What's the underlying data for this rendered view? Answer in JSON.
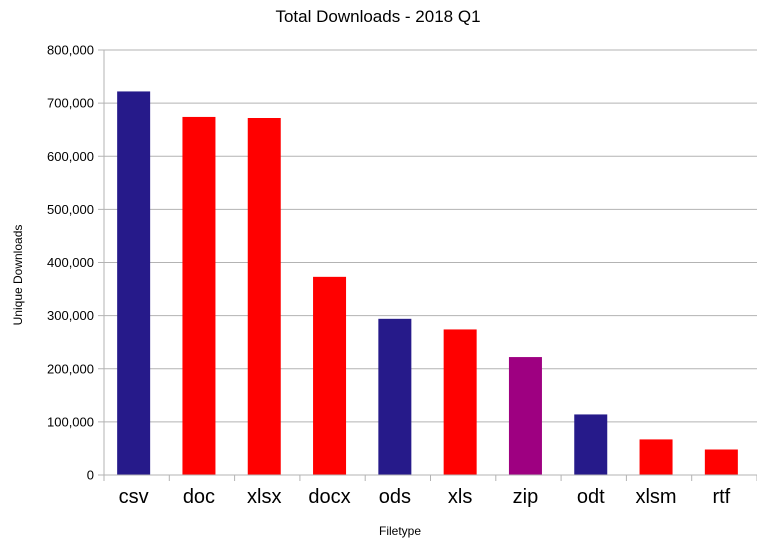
{
  "chart_data": {
    "type": "bar",
    "title": "Total Downloads - 2018 Q1",
    "xlabel": "Filetype",
    "ylabel": "Unique Downloads",
    "ylim": [
      0,
      800000
    ],
    "yticks": [
      0,
      100000,
      200000,
      300000,
      400000,
      500000,
      600000,
      700000,
      800000
    ],
    "ytick_labels": [
      "0",
      "100,000",
      "200,000",
      "300,000",
      "400,000",
      "500,000",
      "600,000",
      "700,000",
      "800,000"
    ],
    "grid": "horizontal",
    "categories": [
      "csv",
      "doc",
      "xlsx",
      "docx",
      "ods",
      "xls",
      "zip",
      "odt",
      "xlsm",
      "rtf"
    ],
    "values": [
      722000,
      674000,
      672000,
      373000,
      294000,
      274000,
      222000,
      114000,
      67000,
      48000
    ],
    "bar_colors": [
      "#261a8a",
      "#ff0000",
      "#ff0000",
      "#ff0000",
      "#261a8a",
      "#ff0000",
      "#9e0081",
      "#261a8a",
      "#ff0000",
      "#ff0000"
    ]
  }
}
